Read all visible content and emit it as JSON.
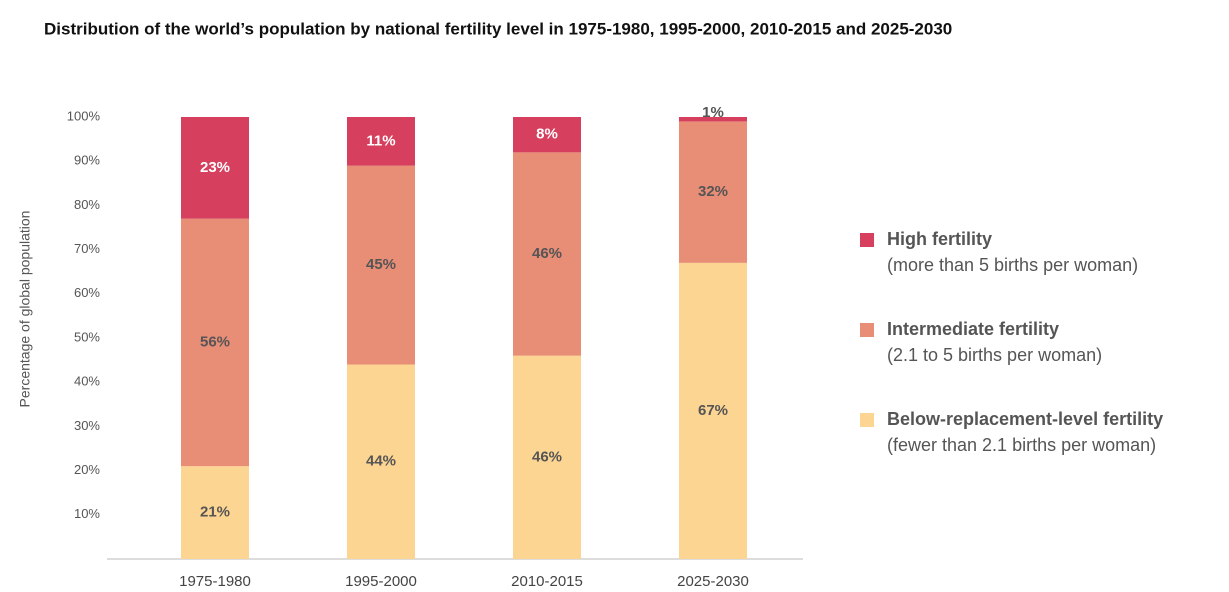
{
  "chart_data": {
    "type": "stacked_bar",
    "title": "Distribution of the world’s population by national fertility level in 1975-1980, 1995-2000, 2010-2015 and 2025-2030",
    "y_label": "Percentage of global population",
    "categories": [
      "1975-1980",
      "1995-2000",
      "2010-2015",
      "2025-2030"
    ],
    "series": [
      {
        "name": "Below-replacement-level fertility",
        "description": "(fewer than 2.1 births per woman)",
        "color": "#fdd592",
        "label_color": "#555555",
        "values": [
          21,
          44,
          46,
          67
        ],
        "value_labels": [
          "21%",
          "44%",
          "46%",
          "67%"
        ]
      },
      {
        "name": "Intermediate fertility",
        "description": "(2.1 to 5 births per woman)",
        "color": "#e88d76",
        "label_color": "#555555",
        "values": [
          56,
          45,
          46,
          32
        ],
        "value_labels": [
          "56%",
          "45%",
          "46%",
          "32%"
        ]
      },
      {
        "name": "High fertility",
        "description": "(more than 5 births per woman)",
        "color": "#d63f5e",
        "label_color": "#ffffff",
        "values": [
          23,
          11,
          8,
          1
        ],
        "value_labels": [
          "23%",
          "11%",
          "8%",
          "1%"
        ]
      }
    ],
    "ylim": [
      0,
      100
    ],
    "yticks": [
      {
        "value": 10,
        "label": "10%"
      },
      {
        "value": 20,
        "label": "20%"
      },
      {
        "value": 30,
        "label": "30%"
      },
      {
        "value": 40,
        "label": "40%"
      },
      {
        "value": 50,
        "label": "50%"
      },
      {
        "value": 60,
        "label": "60%"
      },
      {
        "value": 70,
        "label": "70%"
      },
      {
        "value": 80,
        "label": "80%"
      },
      {
        "value": 90,
        "label": "90%"
      },
      {
        "value": 100,
        "label": "100%"
      }
    ],
    "legend": "right"
  }
}
